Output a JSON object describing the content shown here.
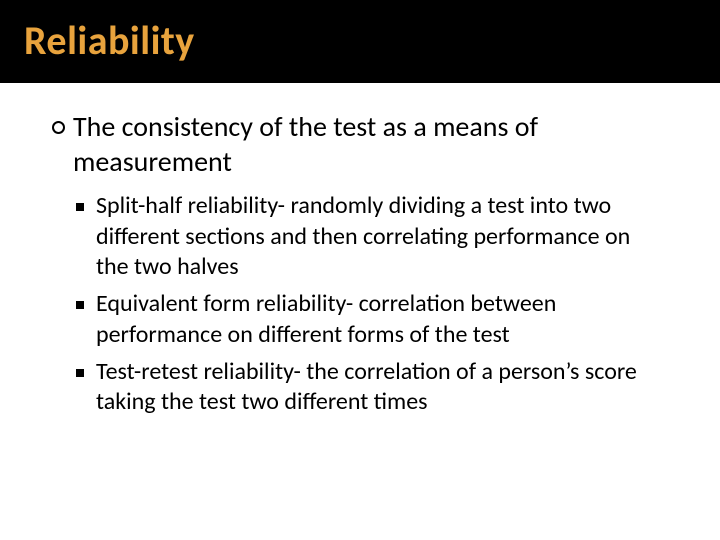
{
  "slide": {
    "title": "Reliability",
    "title_color": "#e8a33d",
    "title_bg": "#000000",
    "title_fontsize": 40,
    "body_fontsize_l1": 28,
    "body_fontsize_l2": 24,
    "body_color": "#000000",
    "background_color": "#ffffff",
    "main_point": "The consistency of the test as a means of measurement",
    "sub_points": [
      "Split-half reliability- randomly dividing a test into two different sections and then correlating performance on the two halves",
      "Equivalent form reliability- correlation between performance on different forms of the test",
      "Test-retest reliability- the correlation of a person’s score taking the test two different times"
    ]
  }
}
